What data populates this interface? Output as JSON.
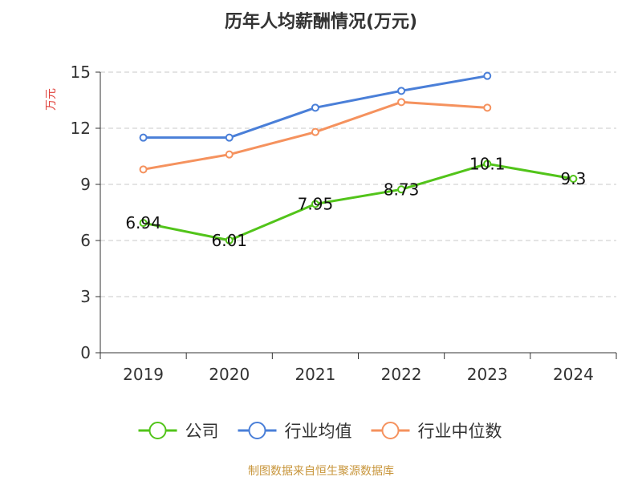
{
  "chart_data": {
    "type": "line",
    "title": "历年人均薪酬情况(万元)",
    "ylabel": "万元",
    "xlabel": "",
    "categories": [
      "2019",
      "2020",
      "2021",
      "2022",
      "2023",
      "2024"
    ],
    "ylim": [
      0,
      15
    ],
    "yticks": [
      "0",
      "3",
      "6",
      "9",
      "12",
      "15"
    ],
    "grid": true,
    "legend_position": "bottom",
    "series": [
      {
        "name": "公司",
        "color": "#52c41a",
        "values": [
          6.94,
          6.01,
          7.95,
          8.73,
          10.1,
          9.3
        ],
        "labels": [
          "6.94",
          "6.01",
          "7.95",
          "8.73",
          "10.1",
          "9.3"
        ]
      },
      {
        "name": "行业均值",
        "color": "#4a7fd8",
        "values": [
          11.5,
          11.5,
          13.1,
          14.0,
          14.8,
          null
        ],
        "labels": []
      },
      {
        "name": "行业中位数",
        "color": "#f5925e",
        "values": [
          9.8,
          10.6,
          11.8,
          13.4,
          13.1,
          null
        ],
        "labels": []
      }
    ]
  },
  "footer": {
    "source": "制图数据来自恒生聚源数据库",
    "source_color": "#c8963c"
  },
  "ylabel_color": "#e0413b"
}
